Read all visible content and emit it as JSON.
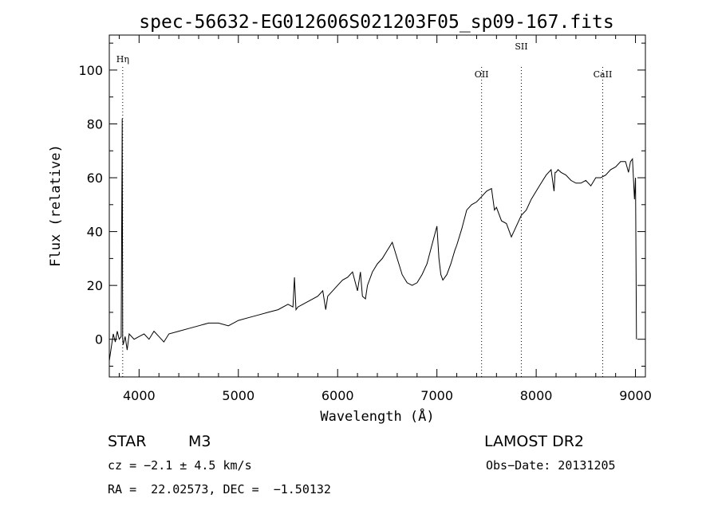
{
  "chart_data": {
    "type": "line",
    "title": "spec-56632-EG012606S021203F05_sp09-167.fits",
    "xlabel": "Wavelength (Å)",
    "ylabel": "Flux (relative)",
    "xlim": [
      3700,
      9100
    ],
    "ylim": [
      -14,
      113
    ],
    "xticks": [
      "4000",
      "5000",
      "6000",
      "7000",
      "8000",
      "9000"
    ],
    "yticks": [
      "0",
      "20",
      "40",
      "60",
      "80",
      "100"
    ],
    "grid": false,
    "series": [
      {
        "x": [
          3700,
          3720,
          3740,
          3760,
          3780,
          3800,
          3820,
          3830,
          3835,
          3840,
          3860,
          3880,
          3900,
          3950,
          4000,
          4050,
          4100,
          4150,
          4200,
          4250,
          4300,
          4400,
          4500,
          4600,
          4700,
          4800,
          4900,
          5000,
          5100,
          5200,
          5300,
          5400,
          5500,
          5550,
          5565,
          5580,
          5600,
          5700,
          5800,
          5850,
          5880,
          5900,
          5950,
          6000,
          6050,
          6100,
          6150,
          6200,
          6230,
          6250,
          6280,
          6300,
          6350,
          6400,
          6450,
          6500,
          6550,
          6600,
          6650,
          6700,
          6750,
          6800,
          6850,
          6900,
          6950,
          7000,
          7020,
          7040,
          7060,
          7100,
          7140,
          7180,
          7200,
          7250,
          7300,
          7350,
          7400,
          7450,
          7500,
          7550,
          7580,
          7600,
          7650,
          7700,
          7750,
          7800,
          7850,
          7900,
          7950,
          8000,
          8050,
          8100,
          8150,
          8180,
          8190,
          8200,
          8220,
          8250,
          8300,
          8350,
          8400,
          8450,
          8500,
          8550,
          8600,
          8650,
          8700,
          8750,
          8800,
          8850,
          8900,
          8930,
          8950,
          8970,
          8990,
          9000,
          9010
        ],
        "y": [
          -8,
          -3,
          2,
          -1,
          3,
          0,
          1,
          82,
          0,
          -2,
          1,
          -4,
          2,
          0,
          1,
          2,
          0,
          3,
          1,
          -1,
          2,
          3,
          4,
          5,
          6,
          6,
          5,
          7,
          8,
          9,
          10,
          11,
          13,
          12,
          23,
          11,
          12,
          14,
          16,
          18,
          11,
          16,
          18,
          20,
          22,
          23,
          25,
          18,
          25,
          16,
          15,
          20,
          25,
          28,
          30,
          33,
          36,
          30,
          24,
          21,
          20,
          21,
          24,
          28,
          35,
          42,
          30,
          24,
          22,
          24,
          28,
          33,
          35,
          41,
          48,
          50,
          51,
          53,
          55,
          56,
          48,
          49,
          44,
          43,
          38,
          42,
          46,
          48,
          52,
          55,
          58,
          61,
          63,
          55,
          62,
          62,
          63,
          62,
          61,
          59,
          58,
          58,
          59,
          57,
          60,
          60,
          61,
          63,
          64,
          66,
          66,
          62,
          66,
          67,
          52,
          60,
          0
        ]
      }
    ],
    "annotations": [
      "Hη",
      "OII",
      "SII",
      "CaII"
    ],
    "annotation_lines_x": [
      3835,
      7450,
      7850,
      8670
    ]
  },
  "footer": {
    "object_type": "STAR",
    "subclass": "M3",
    "survey": "LAMOST DR2",
    "redshift": "cz = −2.1 ± 4.5 km/s",
    "obs_date": "Obs−Date: 20131205",
    "coords": "RA =  22.02573, DEC =  −1.50132"
  }
}
